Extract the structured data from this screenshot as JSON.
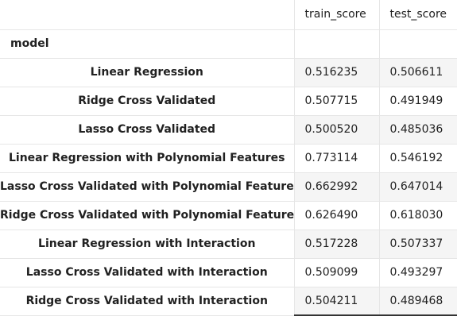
{
  "table": {
    "columns": [
      "train_score",
      "test_score"
    ],
    "index_name": "model",
    "rows": [
      {
        "model": "Linear Regression",
        "train_score": "0.516235",
        "test_score": "0.506611"
      },
      {
        "model": "Ridge Cross Validated",
        "train_score": "0.507715",
        "test_score": "0.491949"
      },
      {
        "model": "Lasso Cross Validated",
        "train_score": "0.500520",
        "test_score": "0.485036"
      },
      {
        "model": "Linear Regression with Polynomial Features",
        "train_score": "0.773114",
        "test_score": "0.546192"
      },
      {
        "model": "Lasso Cross Validated with Polynomial Features",
        "train_score": "0.662992",
        "test_score": "0.647014"
      },
      {
        "model": "Ridge Cross Validated with Polynomial Features",
        "train_score": "0.626490",
        "test_score": "0.618030"
      },
      {
        "model": "Linear Regression with Interaction",
        "train_score": "0.517228",
        "test_score": "0.507337"
      },
      {
        "model": "Lasso Cross Validated with Interaction",
        "train_score": "0.509099",
        "test_score": "0.493297"
      },
      {
        "model": "Ridge Cross Validated with Interaction",
        "train_score": "0.504211",
        "test_score": "0.489468"
      }
    ]
  }
}
